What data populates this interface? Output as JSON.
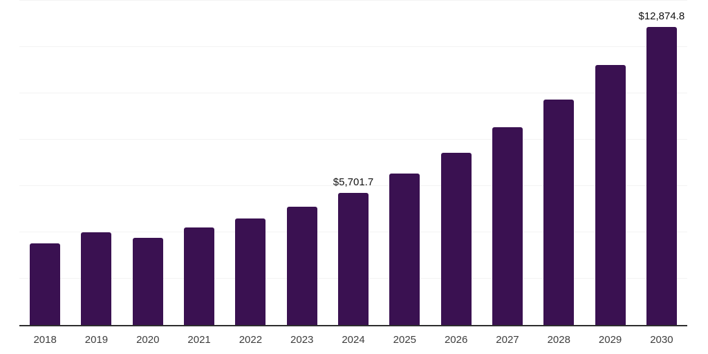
{
  "chart_data": {
    "type": "bar",
    "title": "",
    "xlabel": "",
    "ylabel": "",
    "categories": [
      "2018",
      "2019",
      "2020",
      "2021",
      "2022",
      "2023",
      "2024",
      "2025",
      "2026",
      "2027",
      "2028",
      "2029",
      "2030"
    ],
    "values": [
      3510,
      3990,
      3770,
      4200,
      4590,
      5100,
      5701.7,
      6540,
      7430,
      8550,
      9720,
      11210,
      12874.8
    ],
    "value_labels": {
      "2024": "$5,701.7",
      "2030": "$12,874.8"
    },
    "ylim": [
      0,
      14000
    ],
    "gridline_step": 2000,
    "grid": "horizontal-only",
    "legend": "none",
    "colors": {
      "bar": "#3a1151",
      "axis_line": "#2e2e2e",
      "gridline": "#f3f3f3",
      "tick_label": "#3d3d3d",
      "data_label": "#111111",
      "background": "#ffffff"
    }
  }
}
